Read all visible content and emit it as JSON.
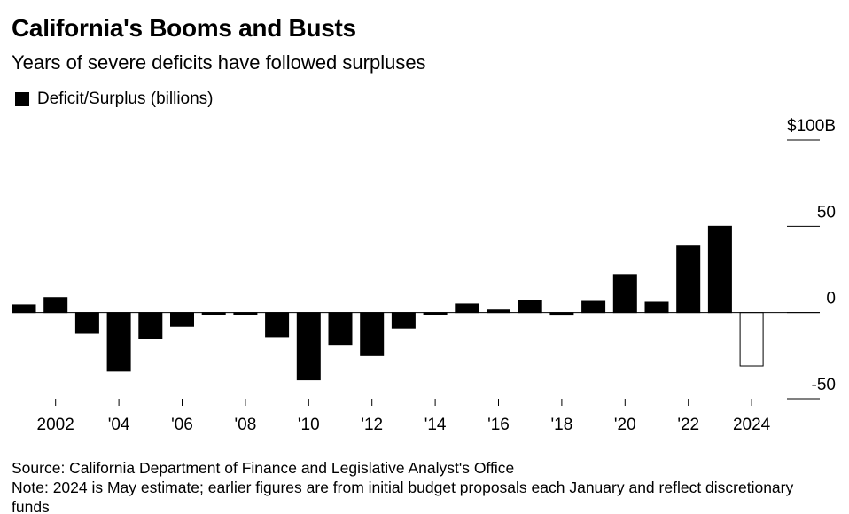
{
  "chart_data": {
    "type": "bar",
    "title": "California's Booms and Busts",
    "subtitle": "Years of severe deficits have followed surpluses",
    "legend_label": "Deficit/Surplus (billions)",
    "source": "Source: California Department of Finance and Legislative Analyst's Office",
    "note": "Note: 2024 is May estimate; earlier figures are from initial budget proposals each January and reflect discretionary funds",
    "categories": [
      null,
      "2002",
      null,
      "'04",
      null,
      "'06",
      null,
      "'08",
      null,
      "'10",
      null,
      "'12",
      null,
      "'14",
      null,
      "'16",
      null,
      "'18",
      null,
      "'20",
      null,
      "'22",
      null,
      "2024"
    ],
    "values": [
      4.5,
      8.7,
      -12,
      -34,
      -15,
      -8,
      -1,
      -1,
      -14,
      -39,
      -18.5,
      -25,
      -9,
      -1,
      5,
      1.5,
      7,
      -1.5,
      6.5,
      22,
      6,
      38.5,
      50,
      -31
    ],
    "color": "#000000",
    "colors": [
      "#000000",
      "#000000",
      "#000000",
      "#000000",
      "#000000",
      "#000000",
      "#000000",
      "#000000",
      "#000000",
      "#000000",
      "#000000",
      "#000000",
      "#000000",
      "#000000",
      "#000000",
      "#000000",
      "#000000",
      "#000000",
      "#000000",
      "#000000",
      "#000000",
      "#000000",
      "#000000",
      "#ffffff"
    ],
    "ylim": [
      -50,
      100
    ],
    "yticks": [
      -50,
      0,
      50,
      {
        "value": 100,
        "label": "$100B"
      }
    ],
    "grid": true
  }
}
